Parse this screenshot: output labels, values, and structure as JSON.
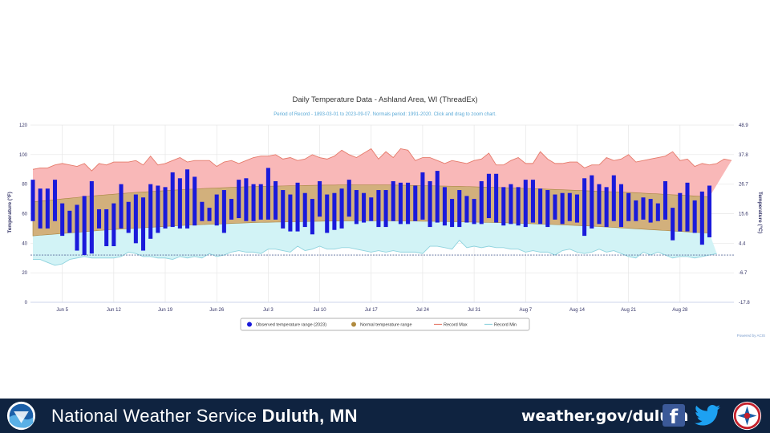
{
  "chart_data": {
    "type": "bar",
    "title": "Daily Temperature Data - Ashland Area, WI (ThreadEx)",
    "subtitle": "Period of Record - 1893-03-01 to 2023-09-07. Normals period: 1991-2020. Click and drag to zoom chart.",
    "ylabel": "Temperature (°F)",
    "ylabel_right": "Temperature (°C)",
    "ylim": [
      0,
      120
    ],
    "yticks": [
      "0",
      "20",
      "40",
      "60",
      "80",
      "100",
      "120"
    ],
    "yticks_right": [
      "-17.8",
      "-6.7",
      "4.4",
      "15.6",
      "26.7",
      "37.8",
      "48.9"
    ],
    "xtick_labels": [
      "Jun 5",
      "Jun 12",
      "Jun 19",
      "Jun 26",
      "Jul 3",
      "Jul 10",
      "Jul 17",
      "Jul 24",
      "Jul 31",
      "Aug 7",
      "Aug 14",
      "Aug 21",
      "Aug 28"
    ],
    "xtick_day_index": [
      4,
      11,
      18,
      25,
      32,
      39,
      46,
      53,
      60,
      67,
      74,
      81,
      88
    ],
    "start_date": "Jun 1",
    "freezing_line": 32,
    "legend": [
      "Observed temperature range (2023)",
      "Normal temperature range",
      "Record Max",
      "Record Min"
    ],
    "legend_position": "bottom",
    "colors": {
      "observed": "#1a1adb",
      "normal_fill": "#d2b07c",
      "normal_line": "#a8843f",
      "record_max_fill": "#f9b8b8",
      "record_max_line": "#e57a6a",
      "record_min_fill": "#d2f3f6",
      "record_min_line": "#8fd3de",
      "freeze": "#5a6b9a",
      "axis_text": "#333366",
      "title": "#333333",
      "subtitle": "#5aa9d6"
    },
    "grid": true,
    "observed": {
      "high": [
        83,
        77,
        77,
        83,
        67,
        62,
        66,
        72,
        82,
        63,
        63,
        67,
        80,
        68,
        73,
        71,
        80,
        79,
        78,
        88,
        84,
        90,
        85,
        68,
        64,
        73,
        76,
        70,
        83,
        84,
        80,
        80,
        91,
        82,
        76,
        73,
        81,
        74,
        70,
        82,
        73,
        74,
        77,
        83,
        76,
        74,
        71,
        76,
        76,
        82,
        81,
        81,
        79,
        88,
        82,
        89,
        78,
        70,
        76,
        72,
        70,
        82,
        87,
        87,
        78,
        80,
        78,
        83,
        83,
        77,
        76,
        73,
        74,
        74,
        73,
        84,
        86,
        80,
        78,
        86,
        80,
        74,
        69,
        71,
        70,
        67,
        82,
        64,
        74,
        81,
        69,
        75,
        79
      ],
      "low": [
        55,
        50,
        50,
        55,
        45,
        47,
        35,
        32,
        33,
        50,
        38,
        38,
        50,
        47,
        40,
        35,
        43,
        47,
        50,
        51,
        50,
        50,
        52,
        55,
        55,
        52,
        47,
        56,
        57,
        55,
        55,
        56,
        56,
        56,
        50,
        48,
        48,
        51,
        46,
        58,
        47,
        49,
        50,
        58,
        53,
        54,
        55,
        51,
        51,
        55,
        53,
        53,
        55,
        56,
        51,
        54,
        52,
        51,
        51,
        54,
        53,
        53,
        57,
        54,
        52,
        53,
        52,
        51,
        54,
        53,
        51,
        56,
        53,
        55,
        54,
        45,
        50,
        53,
        51,
        55,
        51,
        55,
        55,
        56,
        54,
        55,
        56,
        42,
        48,
        48,
        47,
        39,
        44
      ]
    },
    "normal": {
      "high": [
        68,
        68.5,
        69,
        69.5,
        70,
        70.5,
        71,
        71.5,
        72,
        72.4,
        72.8,
        73.2,
        73.6,
        74,
        74.4,
        74.7,
        75,
        75.3,
        75.6,
        75.9,
        76.2,
        76.5,
        76.7,
        77,
        77.2,
        77.4,
        77.6,
        77.8,
        78,
        78.2,
        78.3,
        78.5,
        78.6,
        78.7,
        78.8,
        78.9,
        79,
        79.1,
        79.2,
        79.3,
        79.4,
        79.4,
        79.5,
        79.5,
        79.5,
        79.5,
        79.5,
        79.5,
        79.5,
        79.4,
        79.3,
        79.2,
        79.1,
        79,
        78.9,
        78.8,
        78.7,
        78.6,
        78.5,
        78.4,
        78.2,
        78,
        77.9,
        77.8,
        77.6,
        77.5,
        77.3,
        77.1,
        77,
        76.8,
        76.6,
        76.4,
        76.2,
        76,
        75.8,
        75.6,
        75.4,
        75.2,
        75,
        74.8,
        74.6,
        74.4,
        74.2,
        73.9,
        73.6,
        73.4,
        73.1,
        72.8,
        72.6,
        72.3,
        72,
        71.7,
        71.4
      ],
      "low": [
        45,
        45.4,
        45.8,
        46.2,
        46.6,
        47,
        47.4,
        47.8,
        48.2,
        48.6,
        49,
        49.3,
        49.6,
        49.9,
        50.2,
        50.5,
        50.8,
        51.1,
        51.4,
        51.7,
        52,
        52.2,
        52.4,
        52.6,
        52.8,
        53,
        53.2,
        53.4,
        53.6,
        53.8,
        54,
        54.1,
        54.2,
        54.3,
        54.4,
        54.5,
        54.6,
        54.7,
        54.8,
        54.9,
        55,
        55,
        55.1,
        55.1,
        55.2,
        55.2,
        55.2,
        55.2,
        55.2,
        55.1,
        55.1,
        55,
        55,
        54.9,
        54.9,
        54.8,
        54.7,
        54.6,
        54.5,
        54.4,
        54.3,
        54.2,
        54.1,
        54,
        53.9,
        53.7,
        53.6,
        53.4,
        53.2,
        53,
        52.8,
        52.6,
        52.4,
        52.2,
        52,
        51.8,
        51.6,
        51.3,
        51,
        50.7,
        50.4,
        50.1,
        49.8,
        49.5,
        49.2,
        48.9,
        48.6,
        48.3,
        48,
        47.7,
        47.4,
        47.1,
        46.8
      ]
    },
    "record_max": [
      90,
      91,
      91,
      93,
      94,
      93,
      92,
      94,
      89,
      94,
      93,
      95,
      95,
      95,
      96,
      93,
      99,
      93,
      94,
      96,
      98,
      95,
      96,
      96,
      96,
      92,
      95,
      96,
      94,
      96,
      98,
      99,
      99,
      100,
      97,
      98,
      96,
      97,
      100,
      98,
      97,
      99,
      103,
      100,
      98,
      101,
      104,
      97,
      102,
      98,
      104,
      103,
      96,
      98,
      98,
      96,
      94,
      96,
      95,
      94,
      96,
      97,
      101,
      93,
      93,
      96,
      98,
      94,
      94,
      102,
      97,
      94,
      94,
      95,
      95,
      91,
      93,
      93,
      98,
      96,
      97,
      100,
      95,
      96,
      97,
      98,
      99,
      102,
      96,
      97,
      92,
      94,
      93,
      94,
      97,
      96
    ],
    "record_min": [
      29,
      29,
      27,
      25,
      26,
      29,
      30,
      31,
      30,
      30,
      30,
      30,
      31,
      34,
      33,
      31,
      31,
      30,
      30,
      29,
      31,
      30,
      31,
      30,
      33,
      31,
      32,
      34,
      35,
      34,
      34,
      33,
      36,
      36,
      35,
      34,
      38,
      35,
      36,
      38,
      36,
      36,
      37,
      37,
      36,
      35,
      34,
      35,
      34,
      35,
      34,
      34,
      34,
      33,
      38,
      38,
      37,
      36,
      42,
      37,
      38,
      37,
      38,
      37,
      37,
      36,
      36,
      34,
      35,
      34,
      34,
      32,
      35,
      36,
      34,
      33,
      34,
      36,
      34,
      35,
      33,
      31,
      30,
      34,
      32,
      34,
      32,
      30,
      31,
      31,
      30,
      31,
      32,
      33
    ]
  },
  "credit": "Powered by ACIS",
  "footer": {
    "org_prefix": "National Weather Service",
    "office": "Duluth, MN",
    "website": "weather.gov/duluth",
    "facebook_glyph": "f"
  }
}
